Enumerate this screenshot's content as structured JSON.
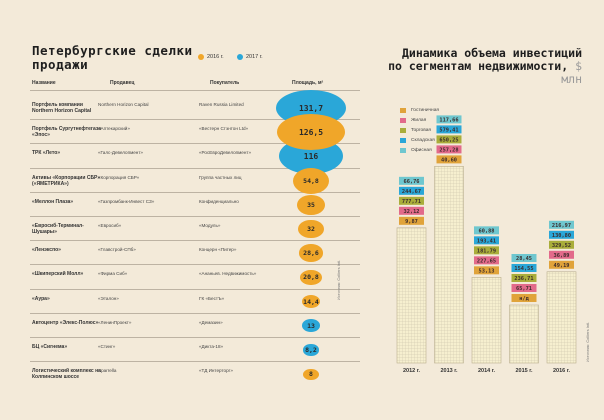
{
  "left": {
    "title": "Петербургские сделки продажи",
    "legend": [
      {
        "label": "2016 г.",
        "color": "#f0a629"
      },
      {
        "label": "2017 г.",
        "color": "#2aa7d8"
      }
    ],
    "headers": {
      "name": "Название",
      "seller": "Продавец",
      "buyer": "Покупатель",
      "area": "Площадь, м²"
    },
    "source": "Источник: Colliers Intl."
  },
  "right": {
    "title": "Динамика объема инвестиций по сегментам недвижимости,",
    "unit": "$ млн",
    "source": "Источник: Colliers Intl."
  },
  "chart_data": [
    {
      "type": "table",
      "title": "Петербургские сделки продажи",
      "columns": [
        "Название",
        "Продавец",
        "Покупатель",
        "Площадь, м²"
      ],
      "rows": [
        {
          "name": "Портфель компании Northern Horizon Capital",
          "seller": "Northern Horizon Capital",
          "buyer": "Raven Russia Limited",
          "area": 131.7,
          "area_label": "131,7",
          "year": "2017 г."
        },
        {
          "name": "Портфель Сургутнефтегаза «Эпос»",
          "seller": "«Аптекарский»",
          "buyer": "«Вестерн Стэнтон Ltd»",
          "area": 126.5,
          "area_label": "126,5",
          "year": "2016 г."
        },
        {
          "name": "ТРК «Лето»",
          "seller": "«Галс-Девелопмент»",
          "buyer": "«РосЕвроДевелопмент»",
          "area": 116,
          "area_label": "116",
          "year": "2017 г."
        },
        {
          "name": "Активы «Корпорации СБР» («ЯМЕТРИКА»)",
          "seller": "«Корпорация СБР»",
          "buyer": "Группа частных лиц",
          "area": 54.8,
          "area_label": "54,8",
          "year": "2016 г."
        },
        {
          "name": "«Меллон Плаза»",
          "seller": "«Газпромбанк-Инвест СЗ»",
          "buyer": "Конфиденциально",
          "area": 35,
          "area_label": "35",
          "year": "2016 г."
        },
        {
          "name": "«Евросиб-Терминал-Шушары»",
          "seller": "«Евросиб»",
          "buyer": "«Модуль»",
          "area": 32,
          "area_label": "32",
          "year": "2016 г."
        },
        {
          "name": "«Ленэкспо»",
          "seller": "«Главстрой-СПб»",
          "buyer": "Концерн «Питер»",
          "area": 28.6,
          "area_label": "28,6",
          "year": "2016 г."
        },
        {
          "name": "«Шкиперский Молл»",
          "seller": "«Фирма Сиб»",
          "buyer": "«Ананьев. Недвижимость»",
          "area": 20.8,
          "area_label": "20,8",
          "year": "2016 г."
        },
        {
          "name": "«Аура»",
          "seller": "«Эталон»",
          "buyer": "ГК «БестЪ»",
          "area": 14.4,
          "area_label": "14,4",
          "year": "2016 г."
        },
        {
          "name": "Автоцентр «Элекс-Полюс»",
          "seller": "«ЛенинПроект»",
          "buyer": "«Демазин»",
          "area": 13,
          "area_label": "13",
          "year": "2017 г."
        },
        {
          "name": "БЦ «Сигнема»",
          "seller": "«Стинг»",
          "buyer": "«Дикта-18»",
          "area": 8.2,
          "area_label": "8,2",
          "year": "2017 г."
        },
        {
          "name": "Логистический комплекс на Колпинском шоссе",
          "seller": "Sparrella",
          "buyer": "«ТД Интерторг»",
          "area": 8,
          "area_label": "8",
          "year": "2016 г."
        }
      ]
    },
    {
      "type": "bar",
      "stacked": true,
      "title": "Динамика объема инвестиций по сегментам недвижимости, $ млн",
      "categories": [
        "2012 г.",
        "2013 г.",
        "2014 г.",
        "2015 г.",
        "2016 г."
      ],
      "series": [
        {
          "name": "Гостиничная",
          "color": "#e0a33a",
          "values": [
            9.87,
            40.6,
            53.13,
            null,
            49.19
          ],
          "labels": [
            "9,87",
            "40,60",
            "53,13",
            "н/д",
            "49,19"
          ]
        },
        {
          "name": "Жилая",
          "color": "#e26a8a",
          "values": [
            32.12,
            257.28,
            227.65,
            65.71,
            36.89
          ],
          "labels": [
            "32,12",
            "257,28",
            "227,65",
            "65,71",
            "36,89"
          ]
        },
        {
          "name": "Торговая",
          "color": "#a9ad3a",
          "values": [
            777.71,
            650.25,
            181.79,
            236.71,
            329.52
          ],
          "labels": [
            "777,71",
            "650,25",
            "181,79",
            "236,71",
            "329,52"
          ]
        },
        {
          "name": "Складская",
          "color": "#2aa7d8",
          "values": [
            244.67,
            579.41,
            193.41,
            154.55,
            130.8
          ],
          "labels": [
            "244,67",
            "579,41",
            "193,41",
            "154,55",
            "130,80"
          ]
        },
        {
          "name": "Офисная",
          "color": "#6fc7cf",
          "values": [
            66.76,
            117.66,
            60.88,
            28.45,
            216.97
          ],
          "labels": [
            "66,76",
            "117,66",
            "60,88",
            "28,45",
            "216,97"
          ]
        }
      ],
      "xlabel": "",
      "ylabel": "$ млн"
    }
  ]
}
